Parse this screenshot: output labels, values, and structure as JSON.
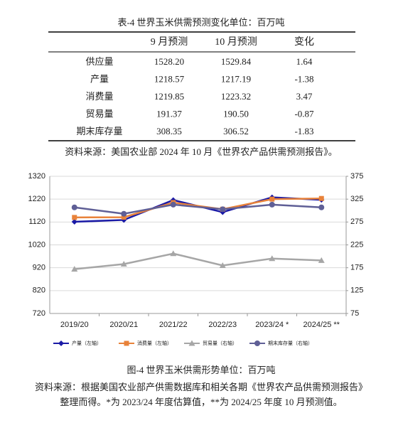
{
  "table": {
    "title": "表-4 世界玉米供需预测变化单位：百万吨",
    "columns": [
      "9 月预测",
      "10 月预测",
      "变化"
    ],
    "rows": [
      [
        "供应量",
        "1528.20",
        "1529.84",
        "1.64"
      ],
      [
        "产量",
        "1218.57",
        "1217.19",
        "-1.38"
      ],
      [
        "消费量",
        "1219.85",
        "1223.32",
        "3.47"
      ],
      [
        "贸易量",
        "191.37",
        "190.50",
        "-0.87"
      ],
      [
        "期末库存量",
        "308.35",
        "306.52",
        "-1.83"
      ]
    ],
    "source": "资料来源：美国农业部 2024 年 10 月《世界农产品供需预测报告》。"
  },
  "chart_data": {
    "type": "line",
    "categories": [
      "2019/20",
      "2020/21",
      "2021/22",
      "2022/23",
      "2023/24 *",
      "2024/25 **"
    ],
    "series": [
      {
        "name": "产量（左轴）",
        "color": "#1a1aa6",
        "marker": "diamond",
        "values": [
          1121,
          1129,
          1216,
          1163,
          1228,
          1217
        ]
      },
      {
        "name": "消费量（左轴）",
        "color": "#e8823a",
        "marker": "square",
        "values": [
          1140,
          1141,
          1205,
          1176,
          1220,
          1223
        ]
      },
      {
        "name": "贸易量（右轴）",
        "color": "#a6a6a6",
        "marker": "triangle",
        "axis": "y2",
        "values": [
          172,
          183,
          206,
          180,
          195,
          191
        ]
      },
      {
        "name": "期末库存量（右轴）",
        "color": "#5f5f96",
        "marker": "circle",
        "axis": "y2",
        "values": [
          307,
          293,
          313,
          303,
          313,
          307
        ]
      }
    ],
    "ylim": [
      720,
      1320
    ],
    "yticks": [
      720,
      820,
      920,
      1020,
      1120,
      1220,
      1320
    ],
    "y2lim": [
      75,
      375
    ],
    "y2ticks": [
      75,
      125,
      175,
      225,
      275,
      325,
      375
    ],
    "grid": true
  },
  "caption": "图-4 世界玉米供需形势单位：百万吨",
  "notes": [
    "资料来源：根据美国农业部产供需数据库和相关各期《世界农产品供需预测报告》",
    "整理而得。*为 2023/24 年度估算值，**为 2024/25 年度 10 月预测值。"
  ]
}
